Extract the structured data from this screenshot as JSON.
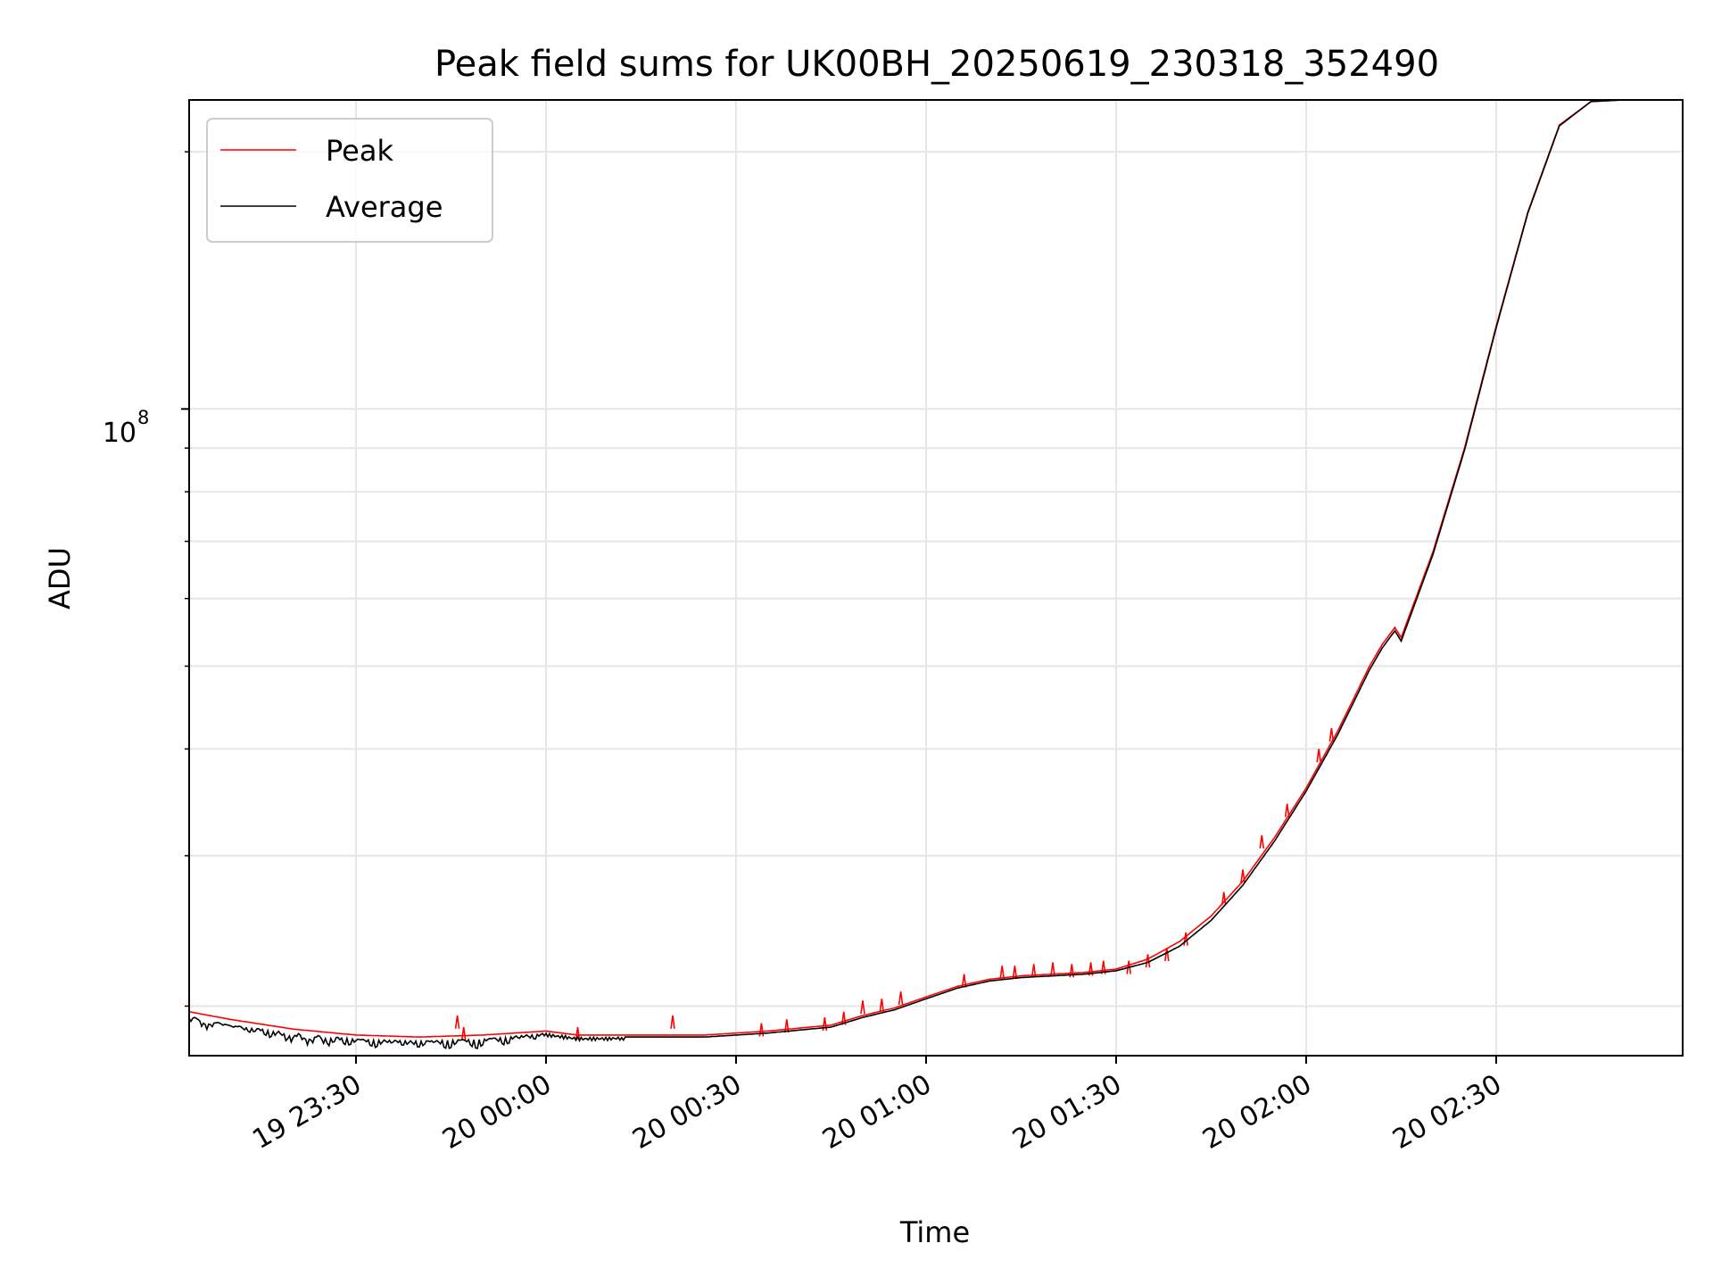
{
  "chart_data": {
    "type": "line",
    "title": "Peak field sums for UK00BH_20250619_230318_352490",
    "xlabel": "Time",
    "ylabel": "ADU",
    "x_ticks": [
      "19 23:30",
      "20 00:00",
      "20 00:30",
      "20 01:00",
      "20 01:30",
      "20 02:00",
      "20 02:30"
    ],
    "y_major_ticks": [
      {
        "value": 100000000,
        "base": "10",
        "exponent": "8"
      }
    ],
    "y_scale": "log",
    "ylim": [
      17500000,
      230000000
    ],
    "xlim": [
      "19 23:03:30",
      "20 02:59:30"
    ],
    "grid": true,
    "legend_position": "top-left",
    "x_time_knots": [
      "19 23:03:30",
      "19 23:30",
      "20 00:00",
      "20 00:30",
      "20 01:00",
      "20 01:30",
      "20 02:00",
      "20 02:30",
      "20 02:59:30"
    ],
    "series": [
      {
        "name": "Peak",
        "color": "#ff0000",
        "points": [
          [
            "19 23:03:30",
            19700000
          ],
          [
            "19 23:10",
            19300000
          ],
          [
            "19 23:20",
            18800000
          ],
          [
            "19 23:30",
            18500000
          ],
          [
            "19 23:40",
            18400000
          ],
          [
            "19 23:50",
            18500000
          ],
          [
            "20 00:00",
            18700000
          ],
          [
            "20 00:05",
            18500000
          ],
          [
            "20 00:15",
            18500000
          ],
          [
            "20 00:25",
            18500000
          ],
          [
            "20 00:35",
            18700000
          ],
          [
            "20 00:45",
            19000000
          ],
          [
            "20 00:50",
            19500000
          ],
          [
            "20 00:55",
            19900000
          ],
          [
            "20 01:00",
            20500000
          ],
          [
            "20 01:05",
            21100000
          ],
          [
            "20 01:10",
            21500000
          ],
          [
            "20 01:15",
            21700000
          ],
          [
            "20 01:25",
            21900000
          ],
          [
            "20 01:30",
            22100000
          ],
          [
            "20 01:35",
            22700000
          ],
          [
            "20 01:40",
            23800000
          ],
          [
            "20 01:45",
            25500000
          ],
          [
            "20 01:50",
            28000000
          ],
          [
            "20 01:55",
            31500000
          ],
          [
            "20 02:00",
            36000000
          ],
          [
            "20 02:05",
            42000000
          ],
          [
            "20 02:10",
            50000000
          ],
          [
            "20 02:12",
            53000000
          ],
          [
            "20 02:14",
            55500000
          ],
          [
            "20 02:15",
            54000000
          ],
          [
            "20 02:20",
            68000000
          ],
          [
            "20 02:25",
            90000000
          ],
          [
            "20 02:30",
            125000000
          ],
          [
            "20 02:35",
            170000000
          ],
          [
            "20 02:40",
            215000000
          ],
          [
            "20 02:45",
            229000000
          ],
          [
            "20 02:50",
            230000000
          ],
          [
            "20 02:59:30",
            230000000
          ]
        ],
        "spikes": [
          [
            "19 23:46",
            19500000
          ],
          [
            "19 23:47",
            18900000
          ],
          [
            "20 00:05",
            18900000
          ],
          [
            "20 00:20",
            19500000
          ],
          [
            "20 00:34",
            19100000
          ],
          [
            "20 00:38",
            19300000
          ],
          [
            "20 00:44",
            19400000
          ],
          [
            "20 00:47",
            19700000
          ],
          [
            "20 00:50",
            20300000
          ],
          [
            "20 00:53",
            20400000
          ],
          [
            "20 00:56",
            20800000
          ],
          [
            "20 01:06",
            21800000
          ],
          [
            "20 01:12",
            22300000
          ],
          [
            "20 01:14",
            22300000
          ],
          [
            "20 01:17",
            22400000
          ],
          [
            "20 01:20",
            22500000
          ],
          [
            "20 01:23",
            22400000
          ],
          [
            "20 01:26",
            22500000
          ],
          [
            "20 01:28",
            22600000
          ],
          [
            "20 01:32",
            22600000
          ],
          [
            "20 01:35",
            23000000
          ],
          [
            "20 01:38",
            23400000
          ],
          [
            "20 01:41",
            24400000
          ],
          [
            "20 01:47",
            27200000
          ],
          [
            "20 01:50",
            28900000
          ],
          [
            "20 01:53",
            31700000
          ],
          [
            "20 01:57",
            34500000
          ],
          [
            "20 02:02",
            40000000
          ],
          [
            "20 02:04",
            42300000
          ]
        ]
      },
      {
        "name": "Average",
        "color": "#000000",
        "points": [
          [
            "19 23:03:30",
            19500000
          ],
          [
            "19 23:10",
            19000000
          ],
          [
            "19 23:20",
            18600000
          ],
          [
            "19 23:30",
            18300000
          ],
          [
            "19 23:40",
            18200000
          ],
          [
            "19 23:50",
            18300000
          ],
          [
            "20 00:00",
            18600000
          ],
          [
            "20 00:05",
            18400000
          ],
          [
            "20 00:15",
            18400000
          ],
          [
            "20 00:25",
            18400000
          ],
          [
            "20 00:35",
            18600000
          ],
          [
            "20 00:45",
            18900000
          ],
          [
            "20 00:50",
            19400000
          ],
          [
            "20 00:55",
            19800000
          ],
          [
            "20 01:00",
            20400000
          ],
          [
            "20 01:05",
            21000000
          ],
          [
            "20 01:10",
            21400000
          ],
          [
            "20 01:15",
            21600000
          ],
          [
            "20 01:25",
            21800000
          ],
          [
            "20 01:30",
            22000000
          ],
          [
            "20 01:35",
            22500000
          ],
          [
            "20 01:40",
            23500000
          ],
          [
            "20 01:45",
            25200000
          ],
          [
            "20 01:50",
            27700000
          ],
          [
            "20 01:55",
            31200000
          ],
          [
            "20 02:00",
            35700000
          ],
          [
            "20 02:05",
            41600000
          ],
          [
            "20 02:10",
            49500000
          ],
          [
            "20 02:12",
            52500000
          ],
          [
            "20 02:14",
            55000000
          ],
          [
            "20 02:15",
            53500000
          ],
          [
            "20 02:20",
            67500000
          ],
          [
            "20 02:25",
            89500000
          ],
          [
            "20 02:30",
            124500000
          ],
          [
            "20 02:35",
            169500000
          ],
          [
            "20 02:40",
            214500000
          ],
          [
            "20 02:45",
            229000000
          ],
          [
            "20 02:50",
            230000000
          ],
          [
            "20 02:59:30",
            230000000
          ]
        ]
      }
    ]
  }
}
